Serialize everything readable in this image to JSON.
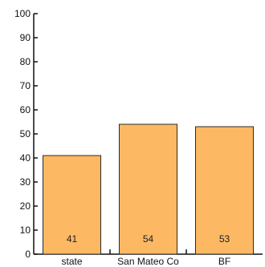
{
  "chart_data": {
    "type": "bar",
    "title": "",
    "xlabel": "",
    "ylabel": "",
    "categories": [
      "state",
      "San Mateo Co",
      "BF"
    ],
    "values": [
      41,
      54,
      53
    ],
    "data_labels": [
      "41",
      "54",
      "53"
    ],
    "ylim": [
      0,
      100
    ],
    "yticks": [
      0,
      10,
      20,
      30,
      40,
      50,
      60,
      70,
      80,
      90,
      100
    ],
    "grid": false,
    "legend": "none",
    "colors": {
      "bar_fill": "#FDB863",
      "bar_stroke": "#2b2b2b",
      "axis": "#111111"
    }
  }
}
